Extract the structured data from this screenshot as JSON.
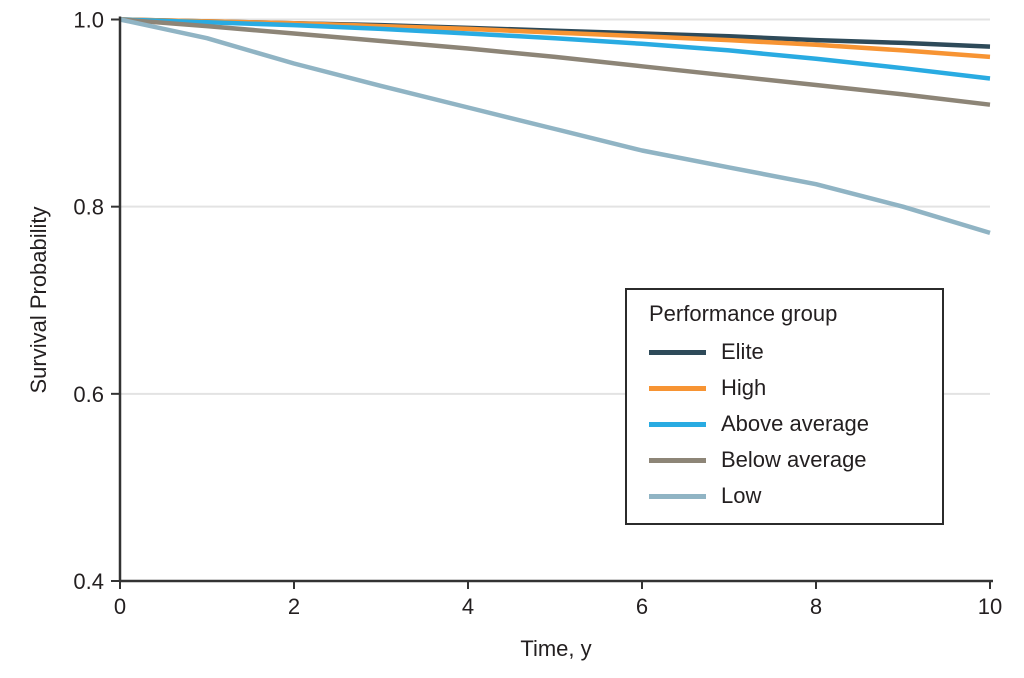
{
  "chart_data": {
    "type": "line",
    "subtype": "kaplan-meier-survival",
    "title": "",
    "xlabel": "Time, y",
    "ylabel": "Survival Probability",
    "x": [
      0,
      1,
      2,
      3,
      4,
      5,
      6,
      7,
      8,
      9,
      10
    ],
    "xlim": [
      0,
      10
    ],
    "ylim": [
      0.4,
      1.0
    ],
    "x_ticks": {
      "values": [
        0,
        2,
        4,
        6,
        8,
        10
      ],
      "labels": [
        "0",
        "2",
        "4",
        "6",
        "8",
        "10"
      ]
    },
    "y_ticks": {
      "values": [
        0.4,
        0.6,
        0.8,
        1.0
      ],
      "labels": [
        "0.4",
        "0.6",
        "0.8",
        "1.0"
      ]
    },
    "grid": {
      "horizontal_at": [
        0.6,
        0.8,
        1.0
      ],
      "vertical": false
    },
    "legend": {
      "title": "Performance group",
      "position": "lower right",
      "border": true
    },
    "series": [
      {
        "name": "Elite",
        "color": "#2e4a59",
        "values": [
          1.0,
          0.998,
          0.996,
          0.994,
          0.991,
          0.988,
          0.985,
          0.982,
          0.978,
          0.975,
          0.971
        ]
      },
      {
        "name": "High",
        "color": "#f79433",
        "values": [
          1.0,
          0.998,
          0.996,
          0.993,
          0.99,
          0.986,
          0.982,
          0.978,
          0.973,
          0.967,
          0.96
        ]
      },
      {
        "name": "Above average",
        "color": "#29abe2",
        "values": [
          1.0,
          0.997,
          0.994,
          0.99,
          0.985,
          0.98,
          0.974,
          0.967,
          0.958,
          0.948,
          0.937
        ]
      },
      {
        "name": "Below average",
        "color": "#8d8577",
        "values": [
          1.0,
          0.993,
          0.985,
          0.977,
          0.969,
          0.96,
          0.95,
          0.94,
          0.93,
          0.92,
          0.909
        ]
      },
      {
        "name": "Low",
        "color": "#90b4c4",
        "values": [
          1.0,
          0.98,
          0.953,
          0.929,
          0.906,
          0.883,
          0.86,
          0.842,
          0.824,
          0.8,
          0.772
        ]
      }
    ]
  },
  "colors": {
    "background": "#ffffff",
    "axis": "#333333",
    "gridline": "#e3e3e3",
    "text": "#231f20",
    "legend_border": "#2b2b2b"
  }
}
